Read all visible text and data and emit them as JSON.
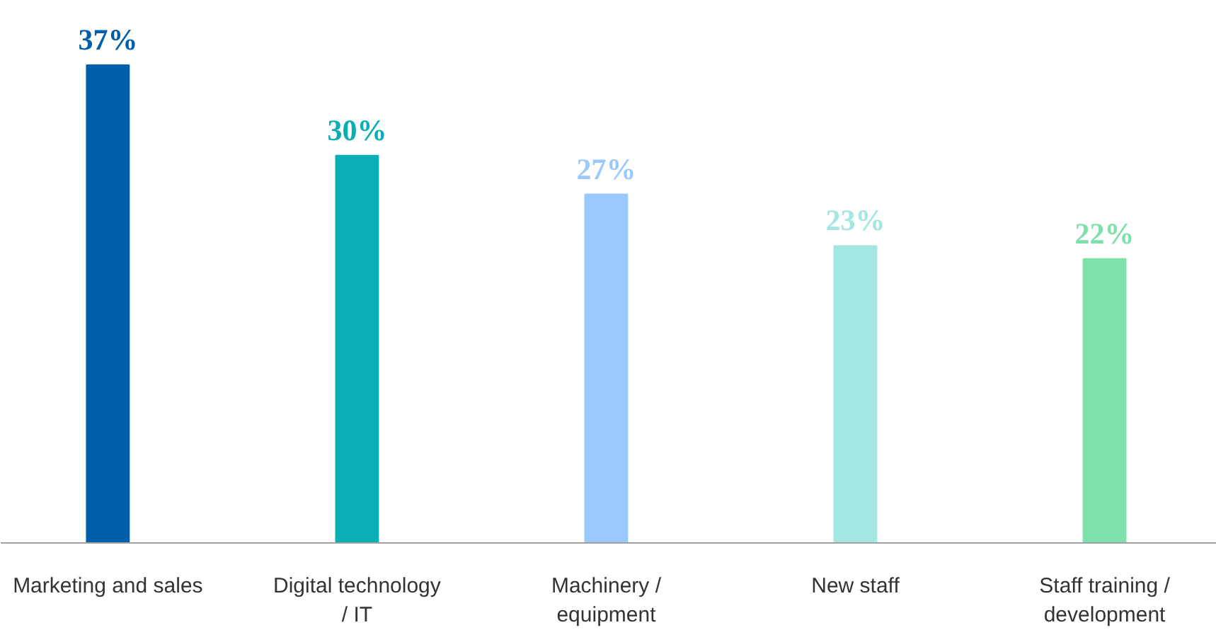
{
  "chart_data": {
    "type": "bar",
    "categories": [
      "Marketing and sales",
      "Digital technology / IT",
      "Machinery / equipment",
      "New staff",
      "Staff training / development"
    ],
    "values": [
      37,
      30,
      27,
      23,
      22
    ],
    "colors": [
      "#005eaa",
      "#0aafb6",
      "#9bc9ff",
      "#a4e6e1",
      "#80e0ac"
    ],
    "value_labels": [
      "37%",
      "30%",
      "27%",
      "23%",
      "22%"
    ],
    "grid": false
  }
}
